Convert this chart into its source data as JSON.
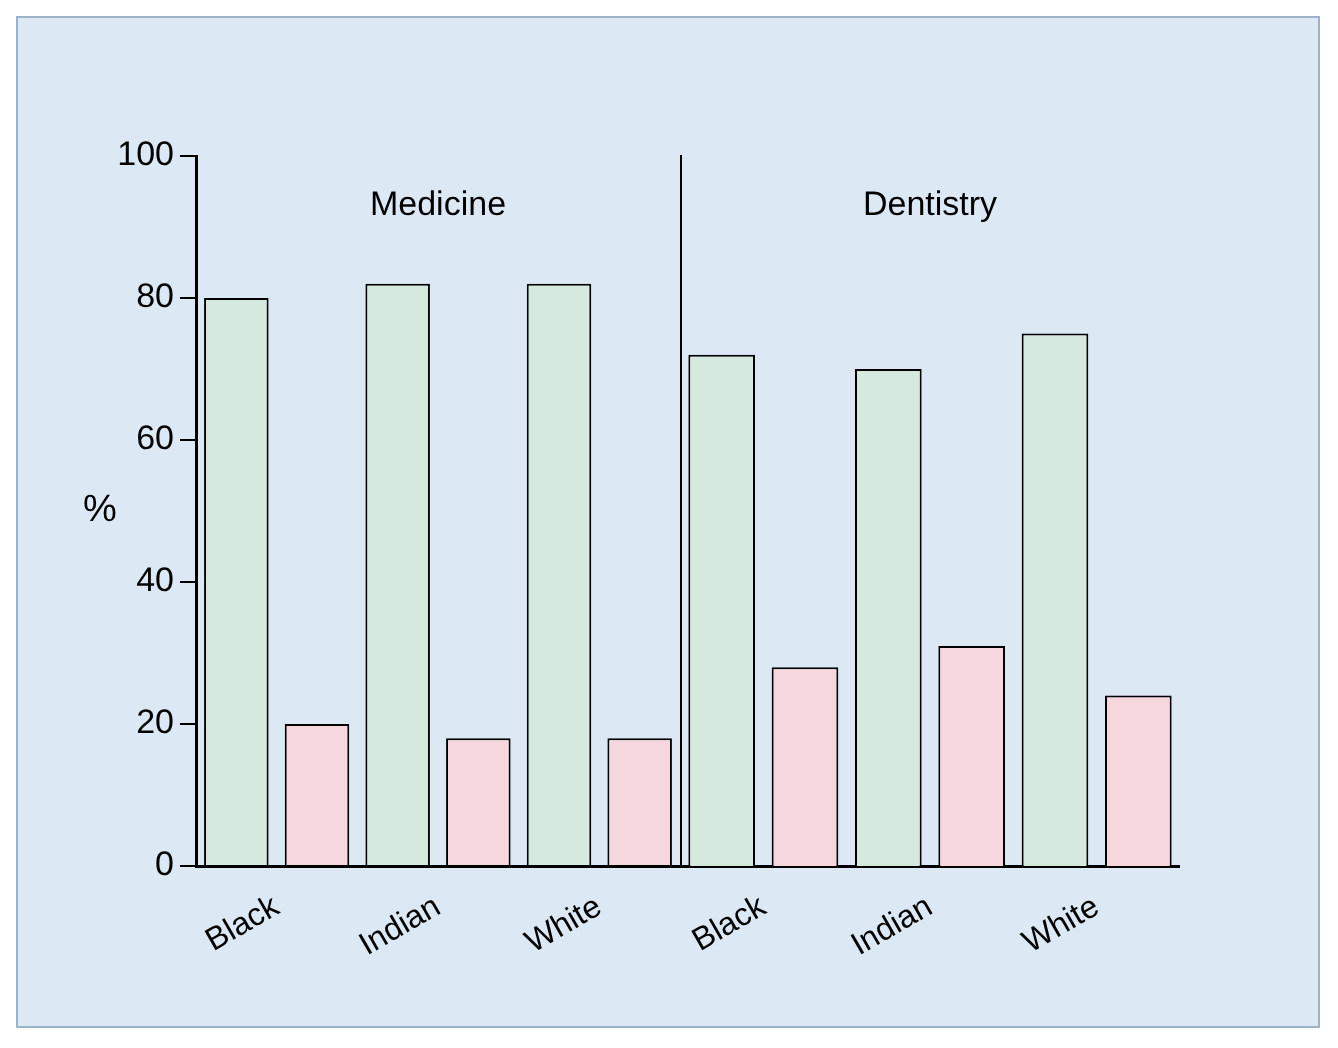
{
  "chart_data": [
    {
      "type": "bar",
      "title": "Medicine",
      "ylabel": "%",
      "categories": [
        "Black",
        "Indian",
        "White"
      ],
      "series": [
        {
          "color": "#d6e9de",
          "values": [
            80,
            82,
            82
          ]
        },
        {
          "color": "#f6d7de",
          "values": [
            20,
            18,
            18
          ]
        }
      ],
      "ylim": [
        0,
        100
      ],
      "yticks": [
        0,
        20,
        40,
        60,
        80,
        100
      ]
    },
    {
      "type": "bar",
      "title": "Dentistry",
      "categories": [
        "Black",
        "Indian",
        "White"
      ],
      "series": [
        {
          "color": "#d6e9de",
          "values": [
            72,
            70,
            75
          ]
        },
        {
          "color": "#f6d7de",
          "values": [
            28,
            31,
            24
          ]
        }
      ],
      "ylim": [
        0,
        100
      ],
      "yticks": [
        0,
        20,
        40,
        60,
        80,
        100
      ],
      "tick_labels": "x"
    }
  ]
}
